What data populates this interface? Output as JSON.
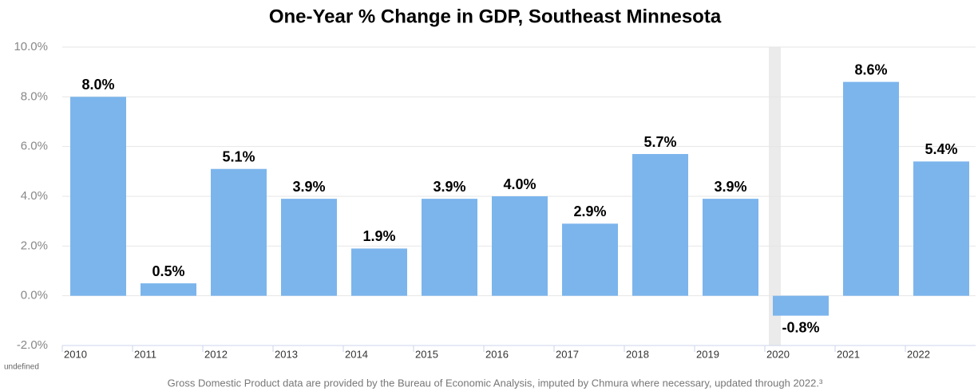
{
  "chart_data": {
    "type": "bar",
    "title": "One-Year % Change in GDP, Southeast Minnesota",
    "categories": [
      "2010",
      "2011",
      "2012",
      "2013",
      "2014",
      "2015",
      "2016",
      "2017",
      "2018",
      "2019",
      "2020",
      "2021",
      "2022"
    ],
    "values": [
      8.0,
      0.5,
      5.1,
      3.9,
      1.9,
      3.9,
      4.0,
      2.9,
      5.7,
      3.9,
      -0.8,
      8.6,
      5.4
    ],
    "value_labels": [
      "8.0%",
      "0.5%",
      "5.1%",
      "3.9%",
      "1.9%",
      "3.9%",
      "4.0%",
      "2.9%",
      "5.7%",
      "3.9%",
      "-0.8%",
      "8.6%",
      "5.4%"
    ],
    "color": "#7cb5ec",
    "ylim": [
      -2,
      10
    ],
    "yticks": [
      {
        "value": -2,
        "label": "-2.0%"
      },
      {
        "value": 0,
        "label": "0.0%"
      },
      {
        "value": 2,
        "label": "2.0%"
      },
      {
        "value": 4,
        "label": "4.0%"
      },
      {
        "value": 6,
        "label": "6.0%"
      },
      {
        "value": 8,
        "label": "8.0%"
      },
      {
        "value": 10,
        "label": "10.0%"
      }
    ],
    "grid": true,
    "shaded": [
      "2020"
    ],
    "shade_color": "#ebebeb",
    "corner_note": "undefined",
    "footnote": "Gross Domestic Product data are provided by the Bureau of Economic Analysis, imputed by Chmura where necessary, updated through 2022.³"
  }
}
